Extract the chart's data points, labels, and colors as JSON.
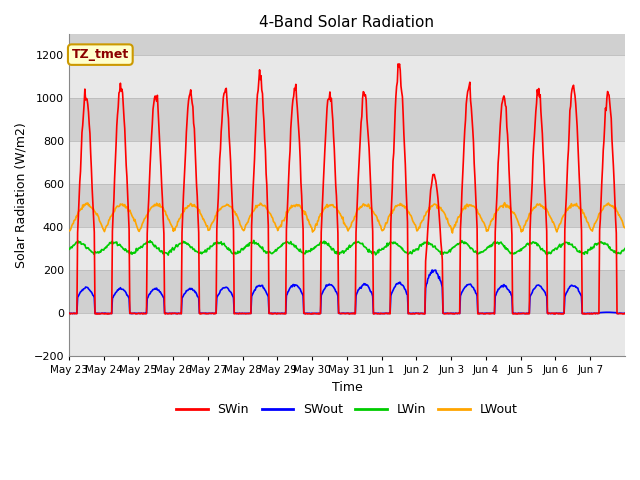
{
  "title": "4-Band Solar Radiation",
  "ylabel": "Solar Radiation (W/m2)",
  "xlabel": "Time",
  "annotation": "TZ_tmet",
  "ylim": [
    -200,
    1300
  ],
  "yticks": [
    -200,
    0,
    200,
    400,
    600,
    800,
    1000,
    1200
  ],
  "x_tick_labels": [
    "May 23",
    "May 24",
    "May 25",
    "May 26",
    "May 27",
    "May 28",
    "May 29",
    "May 30",
    "May 31",
    "Jun 1",
    "Jun 2",
    "Jun 3",
    "Jun 4",
    "Jun 5",
    "Jun 6",
    "Jun 7"
  ],
  "n_days": 16,
  "colors": {
    "SWin": "#ff0000",
    "SWout": "#0000ff",
    "LWin": "#00cc00",
    "LWout": "#ffa500"
  },
  "background_color": "#ffffff",
  "plot_bg_color": "#d8d8d8",
  "band_color_light": "#e8e8e8",
  "band_color_dark": "#d0d0d0",
  "grid_color": "#c0c0c0",
  "legend_labels": [
    "SWin",
    "SWout",
    "LWin",
    "LWout"
  ],
  "swin_peaks": [
    1010,
    1050,
    1010,
    1030,
    1040,
    1100,
    1050,
    1020,
    1020,
    1140,
    650,
    1050,
    1010,
    1030,
    1050,
    1010
  ],
  "swout_peaks": [
    120,
    115,
    115,
    115,
    120,
    130,
    135,
    135,
    135,
    140,
    200,
    135,
    130,
    130,
    130,
    5
  ],
  "lwin_base": 305,
  "lwin_amp": 25,
  "lwout_base": 385,
  "lwout_day_amp": 120,
  "hours_per_day": 30,
  "figsize": [
    6.4,
    4.8
  ],
  "dpi": 100
}
